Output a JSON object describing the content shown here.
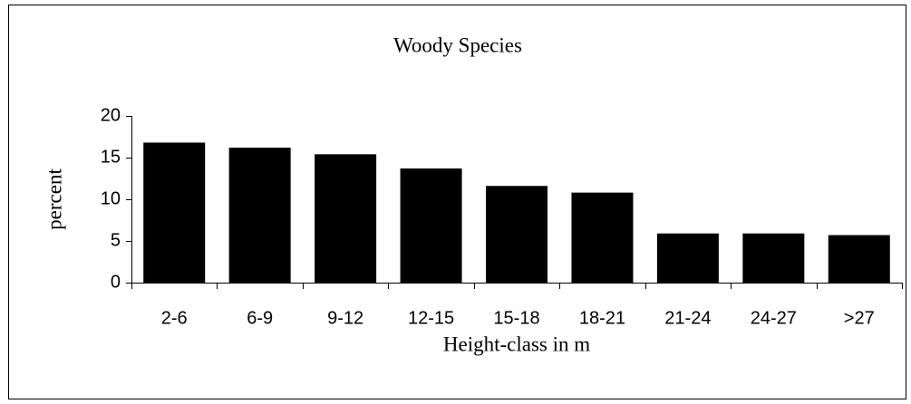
{
  "chart_data": {
    "type": "bar",
    "title": "Woody Species",
    "x_label": "Height-class in m",
    "y_label": "percent",
    "categories": [
      "2-6",
      "6-9",
      "9-12",
      "12-15",
      "15-18",
      "18-21",
      "21-24",
      "24-27",
      ">27"
    ],
    "values": [
      16.8,
      16.2,
      15.4,
      13.7,
      11.6,
      10.8,
      5.9,
      5.9,
      5.7
    ],
    "color": "#000000",
    "ylim": [
      0,
      20
    ],
    "yticks": [
      0,
      5,
      10,
      15,
      20
    ]
  }
}
